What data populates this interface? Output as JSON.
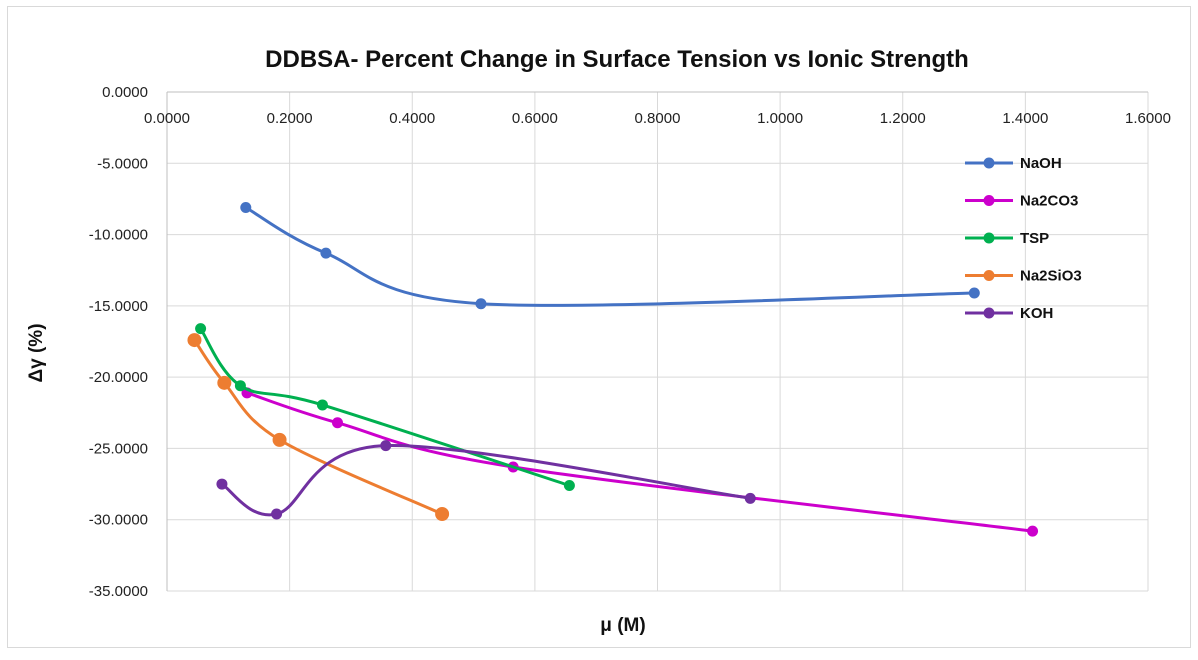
{
  "chart_data": {
    "type": "line",
    "title": "DDBSA- Percent Change in Surface Tension vs Ionic Strength",
    "xlabel": "μ (M)",
    "ylabel": "Δγ (%)",
    "xlim": [
      0,
      1.6
    ],
    "ylim": [
      -35,
      0
    ],
    "x_ticks": [
      "0.0000",
      "0.2000",
      "0.4000",
      "0.6000",
      "0.8000",
      "1.0000",
      "1.2000",
      "1.4000",
      "1.6000"
    ],
    "y_ticks": [
      "0.0000",
      "-5.0000",
      "-10.0000",
      "-15.0000",
      "-20.0000",
      "-25.0000",
      "-30.0000",
      "-35.0000"
    ],
    "x_tick_values": [
      0,
      0.2,
      0.4,
      0.6,
      0.8,
      1.0,
      1.2,
      1.4,
      1.6
    ],
    "y_tick_values": [
      0,
      -5,
      -10,
      -15,
      -20,
      -25,
      -30,
      -35
    ],
    "grid": true,
    "legend_position": "right",
    "smoothed": true,
    "series": [
      {
        "name": "NaOH",
        "color": "#4472C4",
        "x": [
          0.1285,
          0.2592,
          0.5121,
          1.3167
        ],
        "y": [
          -8.1,
          -11.3,
          -14.85,
          -14.1
        ]
      },
      {
        "name": "Na2CO3",
        "color": "#CC00CC",
        "x": [
          0.1305,
          0.2781,
          0.5646,
          1.4117
        ],
        "y": [
          -21.1,
          -23.2,
          -26.3,
          -30.8
        ]
      },
      {
        "name": "TSP",
        "color": "#00B050",
        "x": [
          0.0548,
          0.1197,
          0.2535,
          0.6563
        ],
        "y": [
          -16.6,
          -20.6,
          -21.95,
          -27.6
        ]
      },
      {
        "name": "Na2SiO3",
        "color": "#ED7D31",
        "x": [
          0.0448,
          0.0935,
          0.1836,
          0.4487
        ],
        "y": [
          -17.4,
          -20.4,
          -24.4,
          -29.6
        ]
      },
      {
        "name": "KOH",
        "color": "#7030A0",
        "x": [
          0.0896,
          0.1787,
          0.3568,
          0.9513
        ],
        "y": [
          -27.5,
          -29.6,
          -24.8,
          -28.5
        ]
      }
    ]
  }
}
